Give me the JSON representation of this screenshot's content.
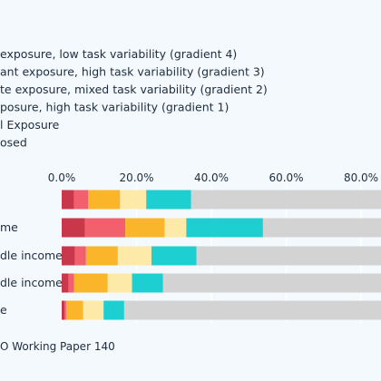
{
  "chart_data": {
    "type": "bar",
    "orientation": "horizontal",
    "stacked": true,
    "legend": [
      {
        "label": "exposure, low task variability (gradient 4)",
        "color": "#c8374a"
      },
      {
        "label": "ant exposure, high task variability (gradient 3)",
        "color": "#f2606e"
      },
      {
        "label": "te exposure, mixed task variability (gradient 2)",
        "color": "#fbb52a"
      },
      {
        "label": "posure, high task variability (gradient 1)",
        "color": "#fde9a8"
      },
      {
        "label": "l Exposure",
        "color": "#1dcfd0"
      },
      {
        "label": "osed",
        "color": "#d3d3d3"
      }
    ],
    "categories": [
      "",
      "me",
      "dle income",
      "dle income",
      "e"
    ],
    "series": [
      {
        "values": [
          3.3,
          6.2,
          3.5,
          1.8,
          0.8
        ]
      },
      {
        "values": [
          3.8,
          10.8,
          3.0,
          1.5,
          0.4
        ]
      },
      {
        "values": [
          8.5,
          10.5,
          8.5,
          9.0,
          4.5
        ]
      },
      {
        "values": [
          7.0,
          5.8,
          9.0,
          6.5,
          5.5
        ]
      },
      {
        "values": [
          12.0,
          20.5,
          12.0,
          8.3,
          5.5
        ]
      },
      {
        "values": [
          65.4,
          46.2,
          64.0,
          72.9,
          83.3
        ]
      }
    ],
    "x_ticks": [
      "0.0%",
      "20.0%",
      "40.0%",
      "60.0%",
      "80.0%"
    ],
    "xlim": [
      0,
      100
    ],
    "grid": true,
    "legend_position": "top-left",
    "source": "O Working Paper 140"
  }
}
